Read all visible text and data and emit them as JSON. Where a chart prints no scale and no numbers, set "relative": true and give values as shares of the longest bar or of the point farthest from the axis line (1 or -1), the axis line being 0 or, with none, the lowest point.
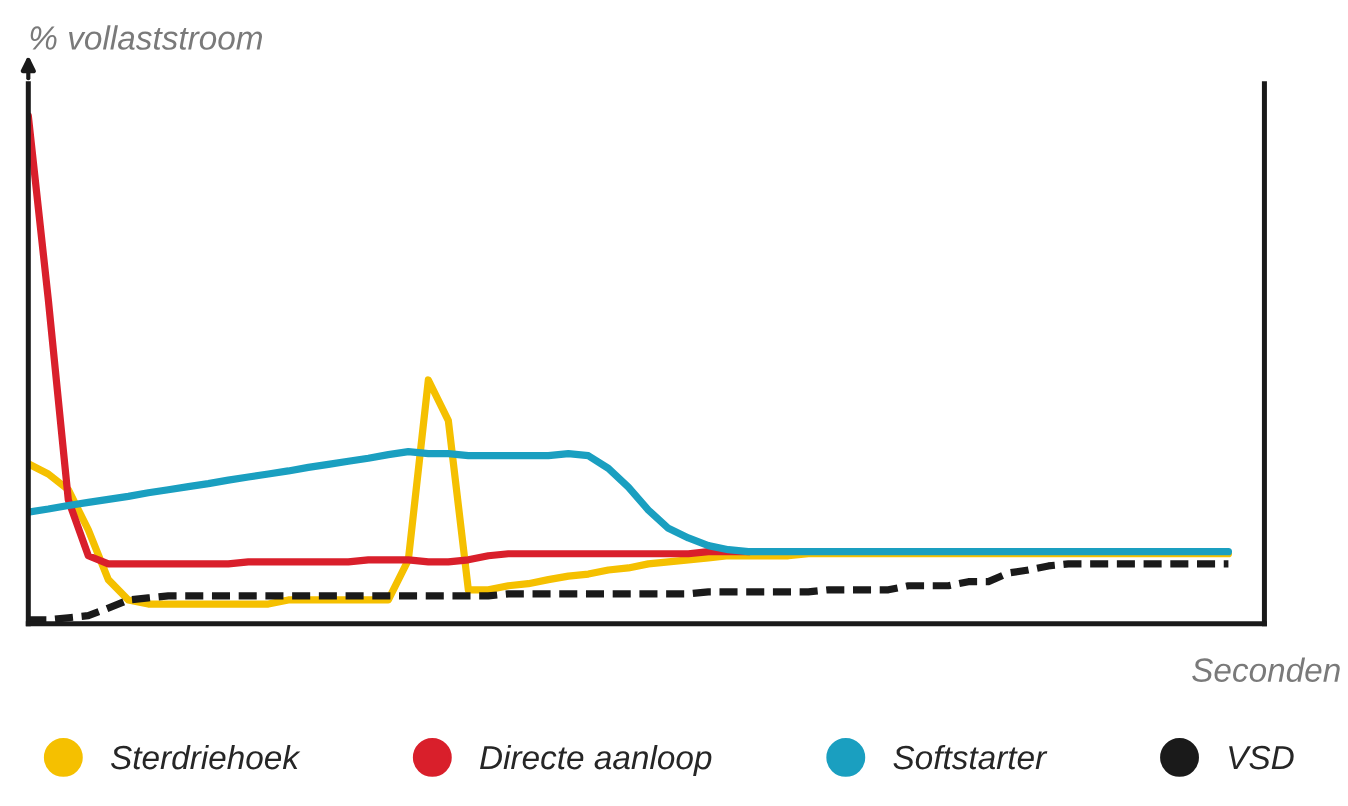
{
  "chart_data": {
    "type": "line",
    "relative": true,
    "xlabel": "Seconden",
    "ylabel": "% vollaststroom",
    "legend": "bottom",
    "categories": [
      null,
      null,
      null,
      null,
      null,
      null,
      null,
      null,
      null,
      null,
      null,
      null,
      null,
      null,
      null,
      null,
      null,
      null,
      null,
      null,
      null,
      null,
      null,
      null,
      null,
      null,
      null,
      null,
      null,
      null,
      null,
      null,
      null,
      null,
      null,
      null,
      null,
      null,
      null,
      null,
      null,
      null,
      null,
      null,
      null,
      null,
      null,
      null,
      null,
      null,
      null,
      null,
      null,
      null,
      null,
      null,
      null,
      null,
      null,
      null,
      null
    ],
    "series": [
      {
        "name": "Sterdriehoek",
        "color": "#f5c000",
        "line_style": "solid",
        "values": [
          0.315,
          0.295,
          0.264,
          0.185,
          0.087,
          0.047,
          0.039,
          0.039,
          0.039,
          0.039,
          0.039,
          0.039,
          0.039,
          0.047,
          0.047,
          0.047,
          0.047,
          0.047,
          0.047,
          0.126,
          0.48,
          0.4,
          0.067,
          0.067,
          0.075,
          0.079,
          0.087,
          0.094,
          0.098,
          0.106,
          0.11,
          0.118,
          0.122,
          0.126,
          0.13,
          0.134,
          0.134,
          0.134,
          0.134,
          0.138,
          0.138,
          0.138,
          0.138,
          0.138,
          0.138,
          0.138,
          0.138,
          0.138,
          0.138,
          0.138,
          0.138,
          0.138,
          0.138,
          0.138,
          0.138,
          0.138,
          0.138,
          0.138,
          0.138,
          0.138,
          0.138
        ]
      },
      {
        "name": "Directe aanloop",
        "color": "#d91f2b",
        "line_style": "solid",
        "values": [
          1.0,
          0.638,
          0.244,
          0.134,
          0.118,
          0.118,
          0.118,
          0.118,
          0.118,
          0.118,
          0.118,
          0.122,
          0.122,
          0.122,
          0.122,
          0.122,
          0.122,
          0.126,
          0.126,
          0.126,
          0.122,
          0.122,
          0.126,
          0.134,
          0.138,
          0.138,
          0.138,
          0.138,
          0.138,
          0.138,
          0.138,
          0.138,
          0.138,
          0.138,
          0.142,
          0.142,
          0.142,
          null,
          null,
          null,
          null,
          null,
          null,
          null,
          null,
          null,
          null,
          null,
          null,
          null,
          null,
          null,
          null,
          null,
          null,
          null,
          null,
          null,
          null,
          null,
          null
        ]
      },
      {
        "name": "Softstarter",
        "color": "#1a9fc0",
        "line_style": "solid",
        "values": [
          0.22,
          0.226,
          0.233,
          0.239,
          0.245,
          0.251,
          0.258,
          0.264,
          0.27,
          0.276,
          0.283,
          0.289,
          0.295,
          0.301,
          0.308,
          0.314,
          0.32,
          0.326,
          0.333,
          0.339,
          0.335,
          0.335,
          0.331,
          0.331,
          0.331,
          0.331,
          0.331,
          0.335,
          0.331,
          0.306,
          0.269,
          0.224,
          0.188,
          0.169,
          0.154,
          0.146,
          0.142,
          0.142,
          0.142,
          0.142,
          0.142,
          0.142,
          0.142,
          0.142,
          0.142,
          0.142,
          0.142,
          0.142,
          0.142,
          0.142,
          0.142,
          0.142,
          0.142,
          0.142,
          0.142,
          0.142,
          0.142,
          0.142,
          0.142,
          0.142,
          0.142
        ]
      },
      {
        "name": "VSD",
        "color": "#1a1a1a",
        "line_style": "dashed",
        "values": [
          0.008,
          0.008,
          0.012,
          0.016,
          0.031,
          0.047,
          0.051,
          0.055,
          0.055,
          0.055,
          0.055,
          0.055,
          0.055,
          0.055,
          0.055,
          0.055,
          0.055,
          0.055,
          0.055,
          0.055,
          0.055,
          0.055,
          0.055,
          0.055,
          0.059,
          0.059,
          0.059,
          0.059,
          0.059,
          0.059,
          0.059,
          0.059,
          0.059,
          0.059,
          0.063,
          0.063,
          0.063,
          0.063,
          0.063,
          0.063,
          0.067,
          0.067,
          0.067,
          0.067,
          0.075,
          0.075,
          0.075,
          0.083,
          0.083,
          0.1,
          0.106,
          0.114,
          0.118,
          0.118,
          0.118,
          0.118,
          0.118,
          0.118,
          0.118,
          0.118,
          0.118
        ]
      }
    ]
  }
}
